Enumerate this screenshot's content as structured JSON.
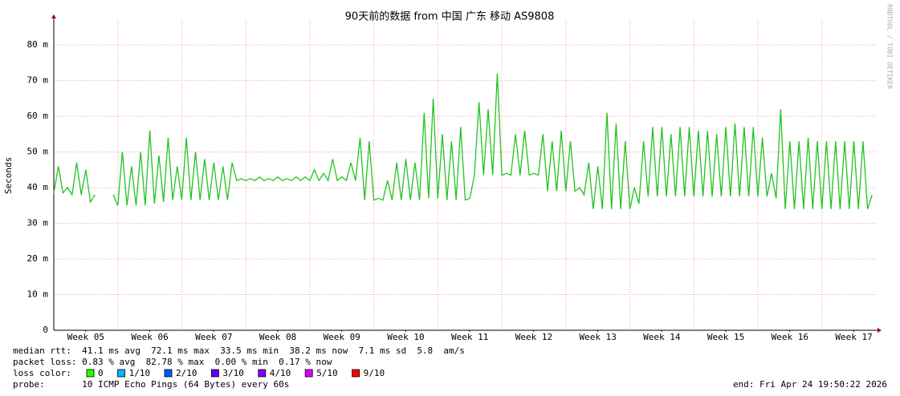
{
  "chart_data": {
    "type": "line",
    "title": "90天前的数据 from 中国 广东 移动 AS9808",
    "ylabel": "Seconds",
    "watermark": "RRDTOOL / TOBI OETIKER",
    "xlim": [
      0,
      90
    ],
    "ylim": [
      0,
      87
    ],
    "xticks": [
      {
        "value": 3.5,
        "label": "Week 05"
      },
      {
        "value": 10.5,
        "label": "Week 06"
      },
      {
        "value": 17.5,
        "label": "Week 07"
      },
      {
        "value": 24.5,
        "label": "Week 08"
      },
      {
        "value": 31.5,
        "label": "Week 09"
      },
      {
        "value": 38.5,
        "label": "Week 10"
      },
      {
        "value": 45.5,
        "label": "Week 11"
      },
      {
        "value": 52.5,
        "label": "Week 12"
      },
      {
        "value": 59.5,
        "label": "Week 13"
      },
      {
        "value": 66.5,
        "label": "Week 14"
      },
      {
        "value": 73.5,
        "label": "Week 15"
      },
      {
        "value": 80.5,
        "label": "Week 16"
      },
      {
        "value": 87.5,
        "label": "Week 17"
      }
    ],
    "xgrid": [
      7,
      14,
      21,
      28,
      35,
      42,
      49,
      56,
      63,
      70,
      77,
      84
    ],
    "yticks": [
      0,
      {
        "value": 10,
        "label": "10 m"
      },
      {
        "value": 20,
        "label": "20 m"
      },
      {
        "value": 30,
        "label": "30 m"
      },
      {
        "value": 40,
        "label": "40 m"
      },
      {
        "value": 50,
        "label": "50 m"
      },
      {
        "value": 60,
        "label": "60 m"
      },
      {
        "value": 70,
        "label": "70 m"
      },
      {
        "value": 80,
        "label": "80 m"
      }
    ],
    "grid": true,
    "x": [
      0,
      0.5,
      1,
      1.5,
      2,
      2.5,
      3,
      3.5,
      4,
      4.5,
      5,
      5.5,
      6,
      6.5,
      7,
      7.5,
      8,
      8.5,
      9,
      9.5,
      10,
      10.5,
      11,
      11.5,
      12,
      12.5,
      13,
      13.5,
      14,
      14.5,
      15,
      15.5,
      16,
      16.5,
      17,
      17.5,
      18,
      18.5,
      19,
      19.5,
      20,
      20.5,
      21,
      21.5,
      22,
      22.5,
      23,
      23.5,
      24,
      24.5,
      25,
      25.5,
      26,
      26.5,
      27,
      27.5,
      28,
      28.5,
      29,
      29.5,
      30,
      30.5,
      31,
      31.5,
      32,
      32.5,
      33,
      33.5,
      34,
      34.5,
      35,
      35.5,
      36,
      36.5,
      37,
      37.5,
      38,
      38.5,
      39,
      39.5,
      40,
      40.5,
      41,
      41.5,
      42,
      42.5,
      43,
      43.5,
      44,
      44.5,
      45,
      45.5,
      46,
      46.5,
      47,
      47.5,
      48,
      48.5,
      49,
      49.5,
      50,
      50.5,
      51,
      51.5,
      52,
      52.5,
      53,
      53.5,
      54,
      54.5,
      55,
      55.5,
      56,
      56.5,
      57,
      57.5,
      58,
      58.5,
      59,
      59.5,
      60,
      60.5,
      61,
      61.5,
      62,
      62.5,
      63,
      63.5,
      64,
      64.5,
      65,
      65.5,
      66,
      66.5,
      67,
      67.5,
      68,
      68.5,
      69,
      69.5,
      70,
      70.5,
      71,
      71.5,
      72,
      72.5,
      73,
      73.5,
      74,
      74.5,
      75,
      75.5,
      76,
      76.5,
      77,
      77.5,
      78,
      78.5,
      79,
      79.5,
      80,
      80.5,
      81,
      81.5,
      82,
      82.5,
      83,
      83.5,
      84,
      84.5,
      85,
      85.5,
      86,
      86.5,
      87,
      87.5,
      88,
      88.5,
      89,
      89.5
    ],
    "series": [
      {
        "name": "median rtt",
        "color": "#22c322",
        "values": [
          38.5,
          46,
          38.5,
          40,
          38,
          47,
          38,
          45,
          36,
          38,
          null,
          null,
          null,
          38,
          35,
          50,
          35,
          46,
          35,
          50,
          35,
          56,
          35.5,
          49,
          36,
          54,
          36.5,
          46,
          36.5,
          54,
          36.5,
          50,
          36.5,
          48,
          36.5,
          47,
          36.5,
          46,
          36.5,
          47,
          42,
          42.5,
          42,
          42.5,
          42,
          43,
          42,
          42.5,
          42,
          43,
          42,
          42.5,
          42,
          43,
          42,
          43,
          42,
          45,
          42,
          44,
          42,
          48,
          42,
          43,
          42,
          47,
          42,
          54,
          36.5,
          53,
          36.5,
          37,
          36.5,
          42,
          36.5,
          47,
          36.5,
          48,
          36.5,
          47,
          36.5,
          61,
          37,
          65,
          37,
          55,
          36.5,
          53,
          36.5,
          57,
          36.5,
          37,
          43.5,
          64,
          43.5,
          62,
          43.5,
          72,
          43.5,
          44,
          43.5,
          55,
          43.5,
          56,
          43.5,
          44,
          43.5,
          55,
          39,
          53,
          39,
          56,
          39,
          53,
          39,
          40,
          38,
          47,
          34,
          46,
          34,
          61,
          34,
          58,
          34,
          53,
          34,
          40,
          35.5,
          53,
          37.5,
          57,
          37.5,
          57,
          37.5,
          55,
          37.5,
          57,
          37.5,
          57,
          37.5,
          56,
          37.5,
          56,
          37.5,
          55,
          37.5,
          57,
          37.5,
          58,
          37.5,
          57,
          37.5,
          57,
          37.5,
          54,
          37.5,
          44,
          37,
          62,
          34,
          53,
          34,
          53,
          34,
          54,
          34,
          53,
          34,
          53,
          34,
          53,
          34,
          53,
          34,
          53,
          34,
          53,
          34,
          38
        ]
      }
    ],
    "stats": [
      "median rtt:  41.1 ms avg  72.1 ms max  33.5 ms min  38.2 ms now  7.1 ms sd  5.8  am/s",
      "packet loss: 0.83 % avg  82.78 % max  0.00 % min  0.17 % now"
    ],
    "loss_color_label": "loss color:",
    "loss_colors": [
      {
        "label": "0",
        "color": "#26ff00"
      },
      {
        "label": "1/10",
        "color": "#00b8ff"
      },
      {
        "label": "2/10",
        "color": "#0059ff"
      },
      {
        "label": "3/10",
        "color": "#5e00ff"
      },
      {
        "label": "4/10",
        "color": "#7e00ff"
      },
      {
        "label": "5/10",
        "color": "#dd00ff"
      },
      {
        "label": "9/10",
        "color": "#ff0000"
      }
    ],
    "probe": "probe:       10 ICMP Echo Pings (64 Bytes) every 60s",
    "end": "end: Fri Apr 24 19:50:22 2026"
  }
}
